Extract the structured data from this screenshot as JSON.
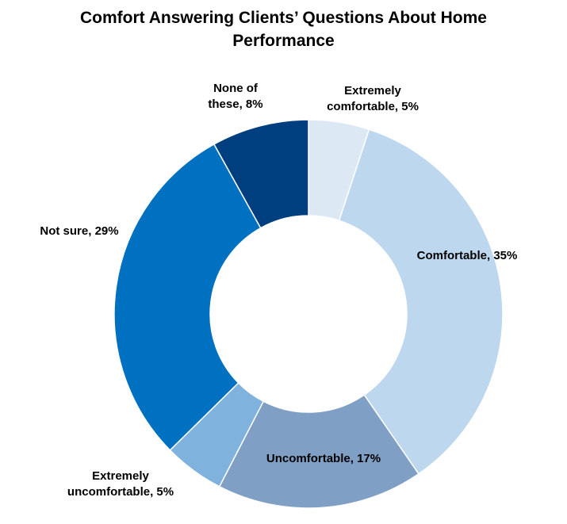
{
  "chart_data": {
    "type": "pie",
    "style": "donut",
    "title_lines": [
      "Comfort Answering Clients’ Questions About Home",
      "Performance"
    ],
    "slices": [
      {
        "label_lines": [
          "Extremely",
          "comfortable, 5%"
        ],
        "value": 5,
        "color": "#dce9f5"
      },
      {
        "label_lines": [
          "Comfortable, 35%"
        ],
        "value": 35,
        "color": "#bdd7ee"
      },
      {
        "label_lines": [
          "Uncomfortable, 17%"
        ],
        "value": 17,
        "color": "#7f9fc4"
      },
      {
        "label_lines": [
          "Extremely",
          "uncomfortable, 5%"
        ],
        "value": 5,
        "color": "#7fb2dc"
      },
      {
        "label_lines": [
          "Not sure, 29%"
        ],
        "value": 29,
        "color": "#0070c0"
      },
      {
        "label_lines": [
          "None of",
          "these, 8%"
        ],
        "value": 8,
        "color": "#003f7f"
      }
    ],
    "legend": "none"
  }
}
